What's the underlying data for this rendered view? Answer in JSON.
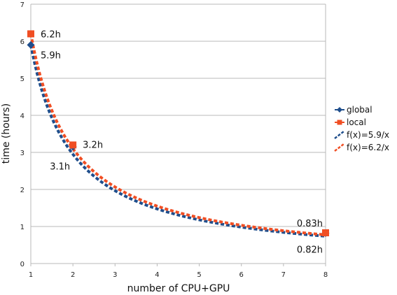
{
  "chart_data": {
    "type": "line",
    "xlabel": "number of CPU+GPU",
    "ylabel": "time (hours)",
    "xlim": [
      1,
      8
    ],
    "ylim": [
      0,
      7
    ],
    "x_ticks": [
      "1",
      "2",
      "3",
      "4",
      "5",
      "6",
      "7",
      "8"
    ],
    "y_ticks": [
      "0",
      "1",
      "2",
      "3",
      "4",
      "5",
      "6",
      "7"
    ],
    "grid": "horizontal",
    "legend_position": "right",
    "series": [
      {
        "name": "global",
        "kind": "markers",
        "marker": "diamond",
        "color": "#1f4e8c",
        "points": [
          {
            "x": 1,
            "y": 5.9
          },
          {
            "x": 2,
            "y": 3.15
          },
          {
            "x": 8,
            "y": 0.82
          }
        ]
      },
      {
        "name": "local",
        "kind": "markers",
        "marker": "square",
        "color": "#f04e23",
        "points": [
          {
            "x": 1,
            "y": 6.2
          },
          {
            "x": 2,
            "y": 3.2
          },
          {
            "x": 8,
            "y": 0.83
          }
        ]
      },
      {
        "name": "f(x)=5.9/x",
        "kind": "curve",
        "numerator": 5.9,
        "color": "#1f4e8c"
      },
      {
        "name": "f(x)=6.2/x",
        "kind": "curve",
        "numerator": 6.2,
        "color": "#f04e23"
      }
    ],
    "annotations": [
      {
        "text": "6.2h",
        "x": 1,
        "y": 6.2
      },
      {
        "text": "5.9h",
        "x": 1,
        "y": 5.9
      },
      {
        "text": "3.2h",
        "x": 2,
        "y": 3.2
      },
      {
        "text": "3.1h",
        "x": 2,
        "y": 3.1
      },
      {
        "text": "0.83h",
        "x": 8,
        "y": 0.83
      },
      {
        "text": "0.82h",
        "x": 8,
        "y": 0.82
      }
    ]
  }
}
